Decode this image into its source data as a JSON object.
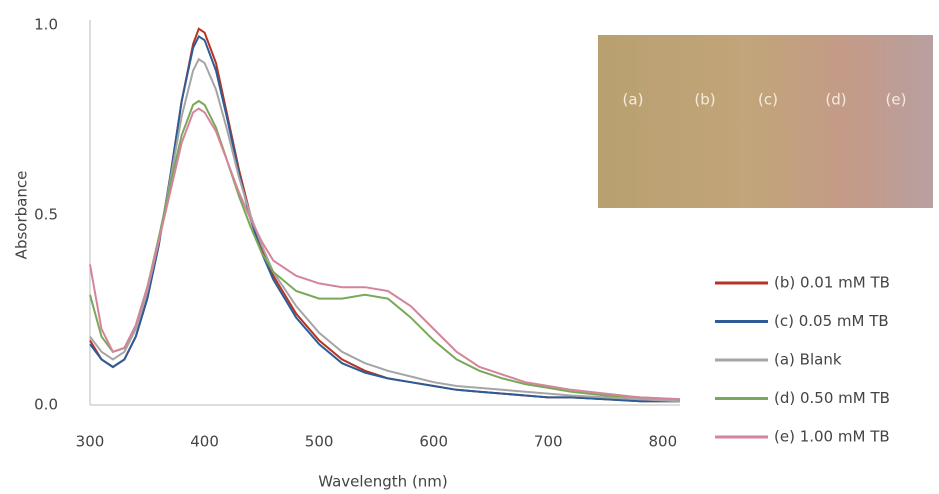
{
  "chart_data": {
    "type": "line",
    "x_label": "Wavelength (nm)",
    "y_label": "Absorbance",
    "x": [
      300,
      310,
      320,
      330,
      340,
      350,
      360,
      370,
      380,
      390,
      395,
      400,
      410,
      420,
      430,
      440,
      450,
      460,
      480,
      500,
      520,
      540,
      560,
      580,
      600,
      620,
      640,
      660,
      680,
      700,
      720,
      750,
      780,
      815
    ],
    "series": [
      {
        "name": "(b) 0.01 mM TB",
        "color": "#b83224",
        "values": [
          0.17,
          0.12,
          0.1,
          0.12,
          0.18,
          0.28,
          0.42,
          0.6,
          0.8,
          0.95,
          0.99,
          0.98,
          0.9,
          0.76,
          0.62,
          0.5,
          0.41,
          0.34,
          0.24,
          0.17,
          0.12,
          0.09,
          0.07,
          0.06,
          0.05,
          0.04,
          0.035,
          0.03,
          0.025,
          0.02,
          0.02,
          0.015,
          0.01,
          0.01
        ]
      },
      {
        "name": "(c) 0.05 mM TB",
        "color": "#2d5d96",
        "values": [
          0.16,
          0.12,
          0.1,
          0.12,
          0.18,
          0.28,
          0.42,
          0.6,
          0.8,
          0.94,
          0.97,
          0.96,
          0.88,
          0.75,
          0.61,
          0.49,
          0.4,
          0.33,
          0.23,
          0.16,
          0.11,
          0.085,
          0.07,
          0.06,
          0.05,
          0.04,
          0.035,
          0.03,
          0.025,
          0.02,
          0.02,
          0.015,
          0.01,
          0.01
        ]
      },
      {
        "name": "(a) Blank",
        "color": "#a5a5a5",
        "values": [
          0.18,
          0.14,
          0.12,
          0.14,
          0.2,
          0.3,
          0.43,
          0.59,
          0.76,
          0.88,
          0.91,
          0.9,
          0.83,
          0.72,
          0.6,
          0.5,
          0.42,
          0.35,
          0.26,
          0.19,
          0.14,
          0.11,
          0.09,
          0.075,
          0.06,
          0.05,
          0.045,
          0.04,
          0.035,
          0.03,
          0.025,
          0.02,
          0.015,
          0.01
        ]
      },
      {
        "name": "(d) 0.50 mM TB",
        "color": "#7aa85a",
        "values": [
          0.29,
          0.18,
          0.14,
          0.15,
          0.21,
          0.31,
          0.44,
          0.58,
          0.71,
          0.79,
          0.8,
          0.79,
          0.73,
          0.64,
          0.55,
          0.47,
          0.4,
          0.35,
          0.3,
          0.28,
          0.28,
          0.29,
          0.28,
          0.23,
          0.17,
          0.12,
          0.09,
          0.07,
          0.055,
          0.045,
          0.035,
          0.025,
          0.02,
          0.015
        ]
      },
      {
        "name": "(e) 1.00 mM TB",
        "color": "#d4849b",
        "values": [
          0.37,
          0.2,
          0.14,
          0.15,
          0.21,
          0.31,
          0.43,
          0.56,
          0.69,
          0.77,
          0.78,
          0.77,
          0.72,
          0.64,
          0.56,
          0.49,
          0.43,
          0.38,
          0.34,
          0.32,
          0.31,
          0.31,
          0.3,
          0.26,
          0.2,
          0.14,
          0.1,
          0.08,
          0.06,
          0.05,
          0.04,
          0.03,
          0.02,
          0.015
        ]
      }
    ],
    "xlim": [
      300,
      815
    ],
    "xticks": [
      300,
      400,
      500,
      600,
      700,
      800
    ],
    "ylim": [
      0,
      1.0
    ],
    "yticks": [
      {
        "value": 0,
        "label": "0.0"
      },
      0.5,
      {
        "value": 1.0,
        "label": "1.0"
      }
    ],
    "inset_labels": [
      "(a)",
      "(b)",
      "(c)",
      "(d)",
      "(e)"
    ]
  }
}
